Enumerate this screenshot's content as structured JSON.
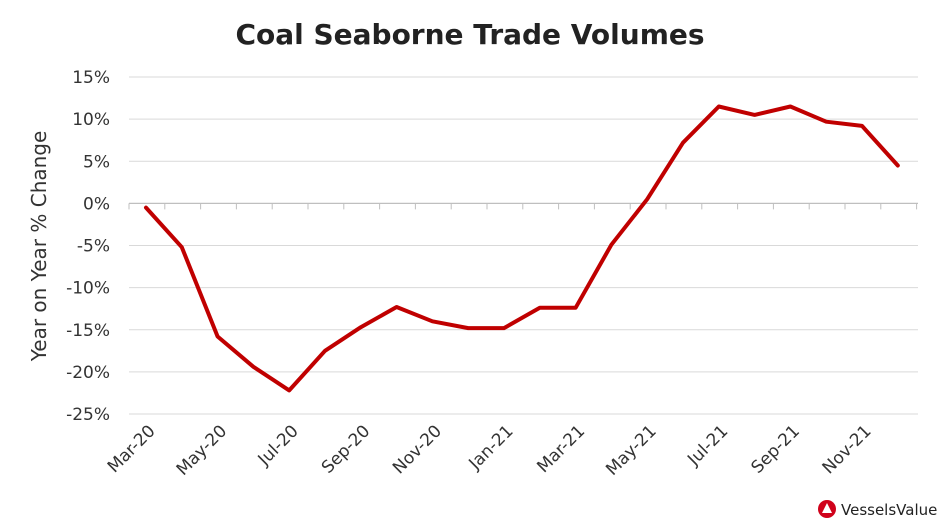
{
  "chart_data": {
    "type": "line",
    "title": "Coal Seaborne Trade Volumes",
    "xlabel": "",
    "ylabel": "Year on Year % Change",
    "x": [
      "Mar-20",
      "Apr-20",
      "May-20",
      "Jun-20",
      "Jul-20",
      "Aug-20",
      "Sep-20",
      "Oct-20",
      "Nov-20",
      "Dec-20",
      "Jan-21",
      "Feb-21",
      "Mar-21",
      "Apr-21",
      "May-21",
      "Jun-21",
      "Jul-21",
      "Aug-21",
      "Sep-21",
      "Oct-21",
      "Nov-21",
      "Dec-21"
    ],
    "x_tick_labels": [
      "Mar-20",
      "May-20",
      "Jul-20",
      "Sep-20",
      "Nov-20",
      "Jan-21",
      "Mar-21",
      "May-21",
      "Jul-21",
      "Sep-21",
      "Nov-21"
    ],
    "series": [
      {
        "name": "",
        "color": "#c00000",
        "values": [
          -0.5,
          -5.2,
          -15.8,
          -19.4,
          -22.2,
          -17.5,
          -14.7,
          -12.3,
          -14.0,
          -14.8,
          -14.8,
          -12.4,
          -12.4,
          -4.9,
          0.5,
          7.2,
          11.5,
          10.5,
          11.5,
          9.7,
          9.2,
          4.5
        ]
      }
    ],
    "ylim": [
      -25,
      15
    ],
    "y_ticks": [
      -25,
      -20,
      -15,
      -10,
      -5,
      0,
      5,
      10,
      15
    ],
    "y_tick_format": "percent",
    "grid": "horizontal"
  },
  "branding": {
    "logo_text": "VesselsValue",
    "logo_color": "#d0021b"
  }
}
